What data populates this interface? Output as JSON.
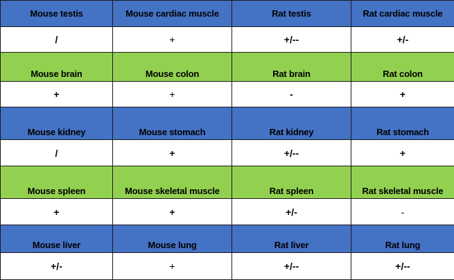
{
  "colors": {
    "header_blue": "#4472C4",
    "header_green": "#92D050",
    "value_row": "#FFFFFF",
    "border": "#1A1A1A"
  },
  "rows": [
    {
      "headers": [
        "Mouse testis",
        "Mouse cardiac muscle",
        "Rat testis",
        "Rat cardiac muscle"
      ],
      "values": [
        "/",
        "+",
        "+/--",
        "+/-"
      ]
    },
    {
      "headers": [
        "Mouse brain",
        "Mouse colon",
        "Rat brain",
        "Rat colon"
      ],
      "values": [
        "+",
        "+",
        "-",
        "+"
      ]
    },
    {
      "headers": [
        "Mouse kidney",
        "Mouse stomach",
        "Rat kidney",
        "Rat stomach"
      ],
      "values": [
        "/",
        "+",
        "+/--",
        "+"
      ]
    },
    {
      "headers": [
        "Mouse spleen",
        "Mouse skeletal muscle",
        "Rat spleen",
        "Rat skeletal muscle"
      ],
      "values": [
        "+",
        "+",
        "+/-",
        "-"
      ]
    },
    {
      "headers": [
        "Mouse liver",
        "Mouse lung",
        "Rat liver",
        "Rat lung"
      ],
      "values": [
        "+/-",
        "+",
        "+/--",
        "+/--"
      ]
    }
  ]
}
